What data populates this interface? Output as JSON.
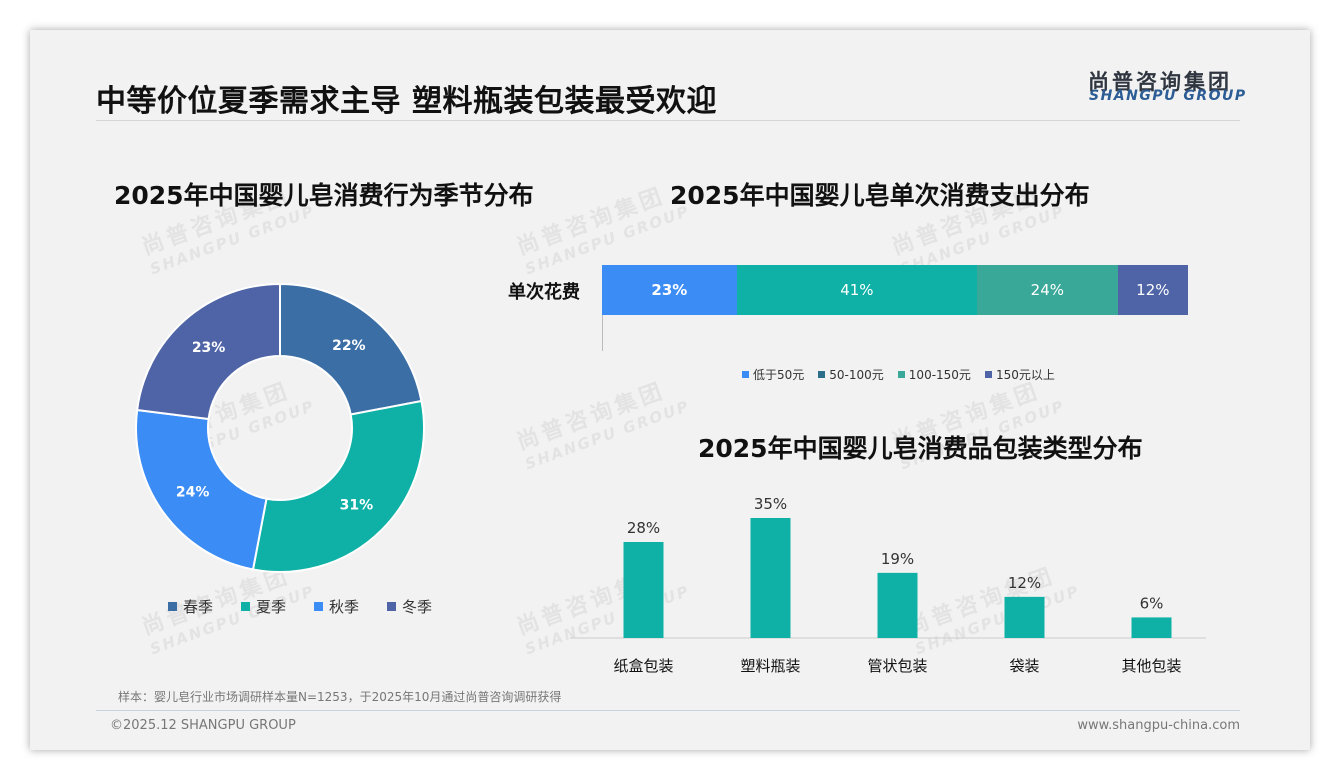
{
  "header": {
    "title": "中等价位夏季需求主导 塑料瓶装包装最受欢迎",
    "logo_cn": "尚普咨询集团",
    "logo_en": "SHANGPU GROUP"
  },
  "watermark": {
    "cn": "尚普咨询集团",
    "en": "SHANGPU GROUP"
  },
  "colors": {
    "spring": "#3a6ea5",
    "summer": "#0fb1a6",
    "autumn": "#3b8cf5",
    "winter": "#4f64a6",
    "green": "#3aa899"
  },
  "chart_data": [
    {
      "type": "pie",
      "style": "donut",
      "title": "2025年中国婴儿皂消费行为季节分布",
      "categories": [
        "春季",
        "夏季",
        "秋季",
        "冬季"
      ],
      "values": [
        22,
        31,
        24,
        23
      ],
      "labels": [
        "22%",
        "31%",
        "24%",
        "23%"
      ],
      "legend_position": "bottom"
    },
    {
      "type": "bar",
      "orientation": "horizontal",
      "stacked": true,
      "title": "2025年中国婴儿皂单次消费支出分布",
      "categories": [
        "单次花费"
      ],
      "series": [
        {
          "name": "低于50元",
          "values": [
            23
          ],
          "label": "23%"
        },
        {
          "name": "50-100元",
          "values": [
            41
          ],
          "label": "41%"
        },
        {
          "name": "100-150元",
          "values": [
            24
          ],
          "label": "24%"
        },
        {
          "name": "150元以上",
          "values": [
            12
          ],
          "label": "12%"
        }
      ],
      "xlim": [
        0,
        100
      ],
      "legend_position": "bottom"
    },
    {
      "type": "bar",
      "title": "2025年中国婴儿皂消费品包装类型分布",
      "categories": [
        "纸盒包装",
        "塑料瓶装",
        "管状包装",
        "袋装",
        "其他包装"
      ],
      "values": [
        28,
        35,
        19,
        12,
        6
      ],
      "labels": [
        "28%",
        "35%",
        "19%",
        "12%",
        "6%"
      ],
      "ylim": [
        0,
        35
      ]
    }
  ],
  "footer": {
    "note": "样本：婴儿皂行业市场调研样本量N=1253，于2025年10月通过尚普咨询调研获得",
    "copyright": "©2025.12 SHANGPU GROUP",
    "website": "www.shangpu-china.com"
  }
}
